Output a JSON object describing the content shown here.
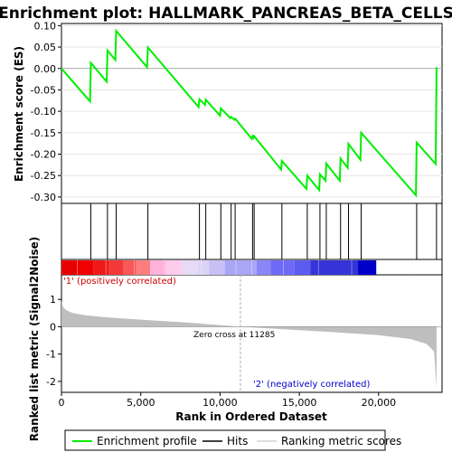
{
  "chart_data": {
    "type": "line",
    "title": "Enrichment plot: HALLMARK_PANCREAS_BETA_CELLS",
    "es_ylabel": "Enrichment score (ES)",
    "metric_ylabel": "Ranked list metric (Signal2Noise)",
    "xlabel": "Rank in Ordered Dataset",
    "xlim": [
      0,
      24000
    ],
    "es_ylim": [
      -0.315,
      0.105
    ],
    "metric_ylim": [
      -2.4,
      1.9
    ],
    "x_ticks": [
      0,
      5000,
      10000,
      15000,
      20000
    ],
    "x_tick_labels": [
      "0",
      "5,000",
      "10,000",
      "15,000",
      "20,000"
    ],
    "es_ticks": [
      0.1,
      0.05,
      0.0,
      -0.05,
      -0.1,
      -0.15,
      -0.2,
      -0.25,
      -0.3
    ],
    "es_tick_labels": [
      "0.10",
      "0.05",
      "0.00",
      "-0.05",
      "-0.10",
      "-0.15",
      "-0.20",
      "-0.25",
      "-0.30"
    ],
    "metric_ticks": [
      1,
      0,
      -1,
      -2
    ],
    "metric_tick_labels": [
      "1",
      "0",
      "-1",
      "-2"
    ],
    "zero_cross": 11285,
    "zero_cross_label": "Zero cross at 11285",
    "pos_label": "'1' (positively correlated)",
    "neg_label": "'2' (negatively correlated)",
    "hits": [
      1850,
      2900,
      3450,
      5450,
      8700,
      9100,
      10050,
      10700,
      10950,
      12050,
      12150,
      13900,
      15500,
      16300,
      16700,
      17600,
      18100,
      18900,
      22400,
      23650
    ],
    "es_curve": {
      "x": [
        0,
        1800,
        1850,
        2850,
        2900,
        3400,
        3450,
        5400,
        5450,
        8650,
        8700,
        9050,
        9100,
        10000,
        10050,
        10650,
        10700,
        10900,
        10950,
        12000,
        12050,
        12100,
        12150,
        13850,
        13900,
        15450,
        15500,
        16250,
        16300,
        16650,
        16700,
        17550,
        17600,
        18050,
        18100,
        18850,
        18900,
        22350,
        22400,
        23600,
        23650
      ],
      "y": [
        0.0,
        -0.077,
        0.013,
        -0.031,
        0.042,
        0.02,
        0.088,
        0.003,
        0.049,
        -0.09,
        -0.072,
        -0.085,
        -0.073,
        -0.11,
        -0.093,
        -0.116,
        -0.113,
        -0.12,
        -0.117,
        -0.164,
        -0.158,
        -0.162,
        -0.158,
        -0.236,
        -0.216,
        -0.281,
        -0.25,
        -0.284,
        -0.247,
        -0.262,
        -0.222,
        -0.262,
        -0.21,
        -0.232,
        -0.176,
        -0.213,
        -0.15,
        -0.296,
        -0.173,
        -0.223,
        0.003
      ]
    },
    "metric_curve": {
      "x": [
        0,
        100,
        300,
        700,
        1500,
        3000,
        5000,
        8000,
        11285,
        14000,
        17000,
        20000,
        22000,
        23000,
        23500,
        23650
      ],
      "y": [
        0.95,
        0.72,
        0.6,
        0.5,
        0.42,
        0.34,
        0.26,
        0.15,
        0.0,
        -0.09,
        -0.19,
        -0.31,
        -0.45,
        -0.62,
        -0.9,
        -2.25
      ]
    },
    "heat_colors": [
      "#e80000",
      "#f00000",
      "#ee1a1a",
      "#f43838",
      "#f85858",
      "#fc7e7e",
      "#ffb2dc",
      "#ffccee",
      "#e6daf6",
      "#dcd4f8",
      "#c8c0f4",
      "#aaa6f6",
      "#8a86f8",
      "#6e6af8",
      "#5c5cf0",
      "#3434d8",
      "#0000c8"
    ],
    "colors": {
      "es_line": "#00ee00",
      "hits": "#000000",
      "metric_fill": "#bebebe",
      "zero_line": "#b0b0b0",
      "pos": "#cc0000",
      "neg": "#0000cc"
    },
    "legend": [
      {
        "label": "Enrichment profile",
        "kind": "es"
      },
      {
        "label": "Hits",
        "kind": "hit"
      },
      {
        "label": "Ranking metric scores",
        "kind": "metric"
      }
    ]
  }
}
